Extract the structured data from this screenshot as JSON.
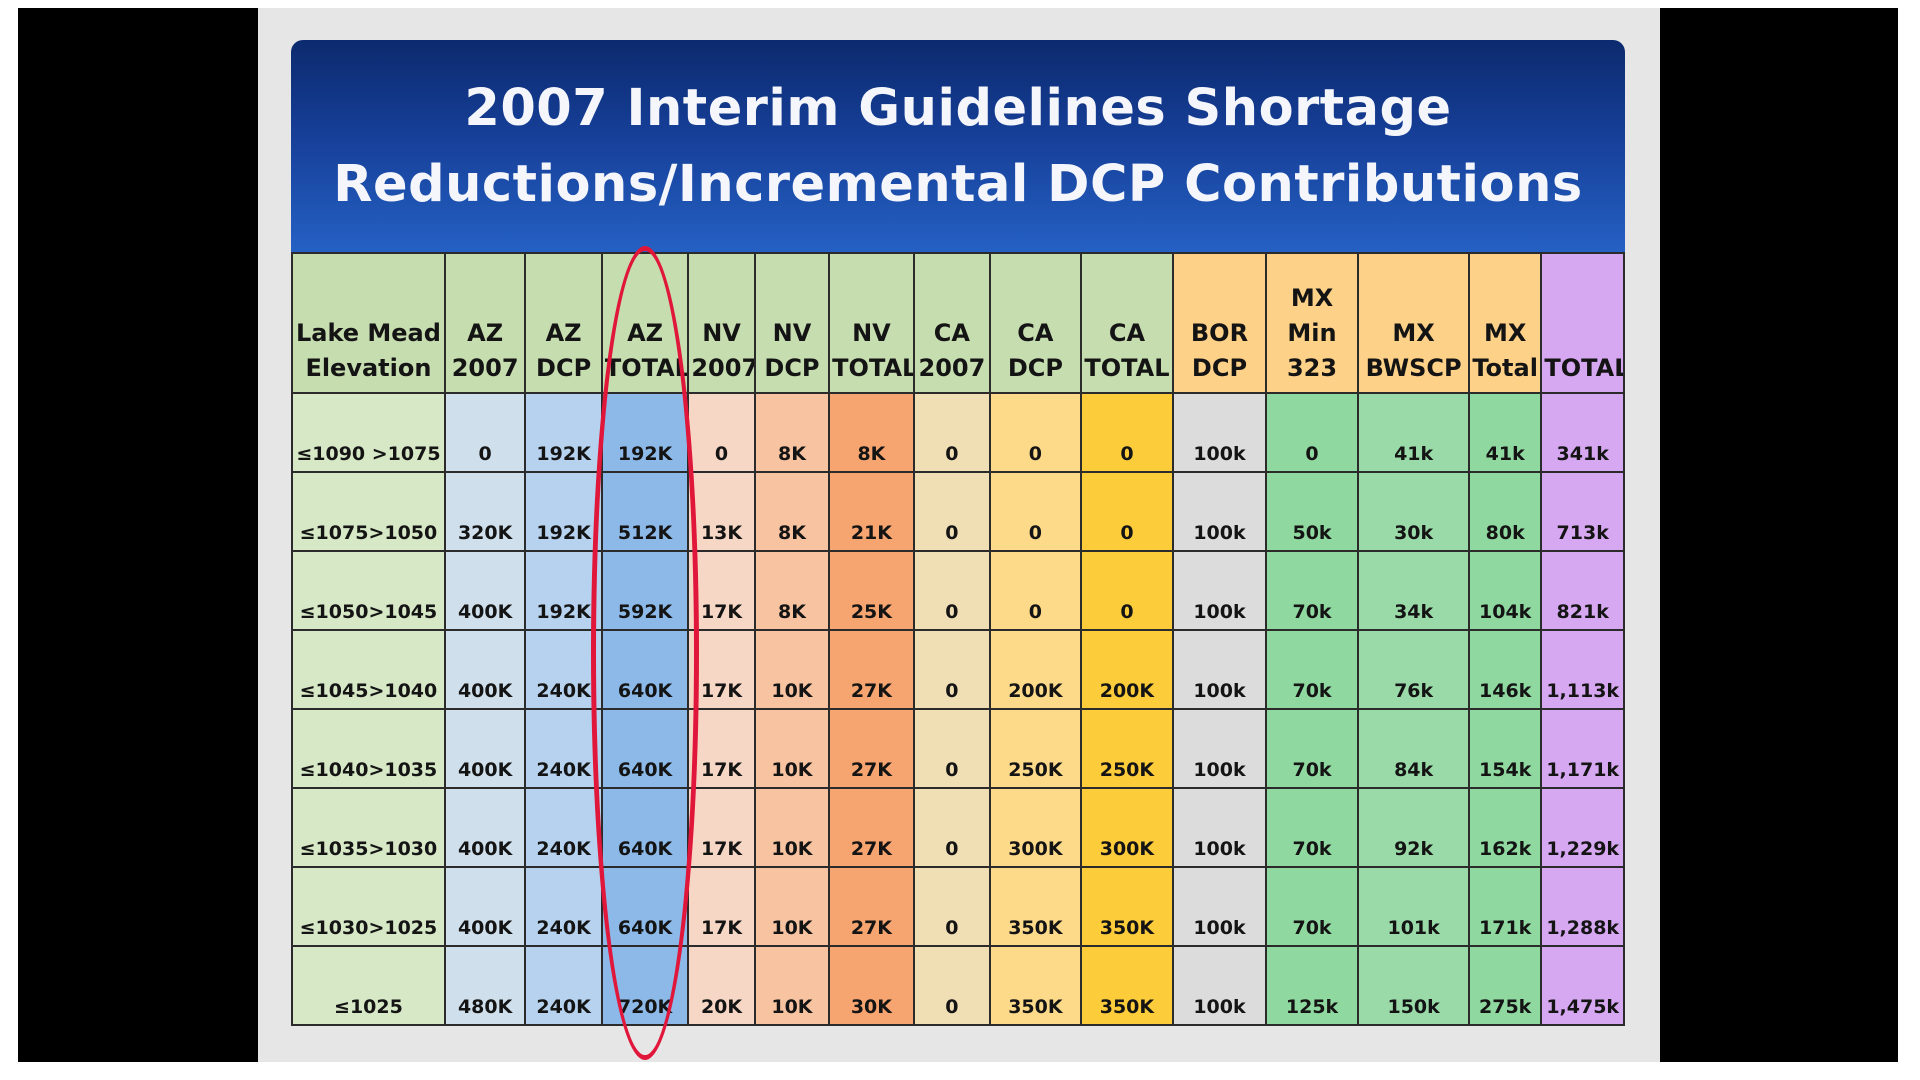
{
  "slide": {
    "title_line1": "2007 Interim Guidelines Shortage",
    "title_line2": "Reductions/Incremental DCP Contributions"
  },
  "table": {
    "columns": [
      {
        "label": "Lake Mead Elevation",
        "head_color": "#c6ddb0",
        "body_color": "#d7e8c6"
      },
      {
        "label": "AZ 2007",
        "head_color": "#c6ddb0",
        "body_color": "#cfe0ec"
      },
      {
        "label": "AZ DCP",
        "head_color": "#c6ddb0",
        "body_color": "#b6d2ee"
      },
      {
        "label": "AZ TOTAL",
        "head_color": "#c6ddb0",
        "body_color": "#8db9e8"
      },
      {
        "label": "NV 2007",
        "head_color": "#c6ddb0",
        "body_color": "#f6d6c4"
      },
      {
        "label": "NV DCP",
        "head_color": "#c6ddb0",
        "body_color": "#f8c3a0"
      },
      {
        "label": "NV TOTAL",
        "head_color": "#c6ddb0",
        "body_color": "#f6a570"
      },
      {
        "label": "CA 2007",
        "head_color": "#c6ddb0",
        "body_color": "#f0deb4"
      },
      {
        "label": "CA DCP",
        "head_color": "#c6ddb0",
        "body_color": "#fdda8a"
      },
      {
        "label": "CA TOTAL",
        "head_color": "#c6ddb0",
        "body_color": "#fdcc3a"
      },
      {
        "label": "BOR DCP",
        "head_color": "#fdd188",
        "body_color": "#dcdcdc"
      },
      {
        "label": "MX Min 323",
        "head_color": "#fdd188",
        "body_color": "#8fd9a0"
      },
      {
        "label": "MX BWSCP",
        "head_color": "#fdd188",
        "body_color": "#9adaa8"
      },
      {
        "label": "MX Total",
        "head_color": "#fdd188",
        "body_color": "#8fd9a0"
      },
      {
        "label": "TOTAL",
        "head_color": "#d7a8f2",
        "body_color": "#d7a8f2"
      }
    ],
    "rows": [
      [
        "≤1090 >1075",
        "0",
        "192K",
        "192K",
        "0",
        "8K",
        "8K",
        "0",
        "0",
        "0",
        "100k",
        "0",
        "41k",
        "41k",
        "341k"
      ],
      [
        "≤1075>1050",
        "320K",
        "192K",
        "512K",
        "13K",
        "8K",
        "21K",
        "0",
        "0",
        "0",
        "100k",
        "50k",
        "30k",
        "80k",
        "713k"
      ],
      [
        "≤1050>1045",
        "400K",
        "192K",
        "592K",
        "17K",
        "8K",
        "25K",
        "0",
        "0",
        "0",
        "100k",
        "70k",
        "34k",
        "104k",
        "821k"
      ],
      [
        "≤1045>1040",
        "400K",
        "240K",
        "640K",
        "17K",
        "10K",
        "27K",
        "0",
        "200K",
        "200K",
        "100k",
        "70k",
        "76k",
        "146k",
        "1,113k"
      ],
      [
        "≤1040>1035",
        "400K",
        "240K",
        "640K",
        "17K",
        "10K",
        "27K",
        "0",
        "250K",
        "250K",
        "100k",
        "70k",
        "84k",
        "154k",
        "1,171k"
      ],
      [
        "≤1035>1030",
        "400K",
        "240K",
        "640K",
        "17K",
        "10K",
        "27K",
        "0",
        "300K",
        "300K",
        "100k",
        "70k",
        "92k",
        "162k",
        "1,229k"
      ],
      [
        "≤1030>1025",
        "400K",
        "240K",
        "640K",
        "17K",
        "10K",
        "27K",
        "0",
        "350K",
        "350K",
        "100k",
        "70k",
        "101k",
        "171k",
        "1,288k"
      ],
      [
        "≤1025",
        "480K",
        "240K",
        "720K",
        "20K",
        "10K",
        "30K",
        "0",
        "350K",
        "350K",
        "100k",
        "125k",
        "150k",
        "275k",
        "1,475k"
      ]
    ]
  },
  "annotation": {
    "highlight_color": "#e0173a"
  }
}
